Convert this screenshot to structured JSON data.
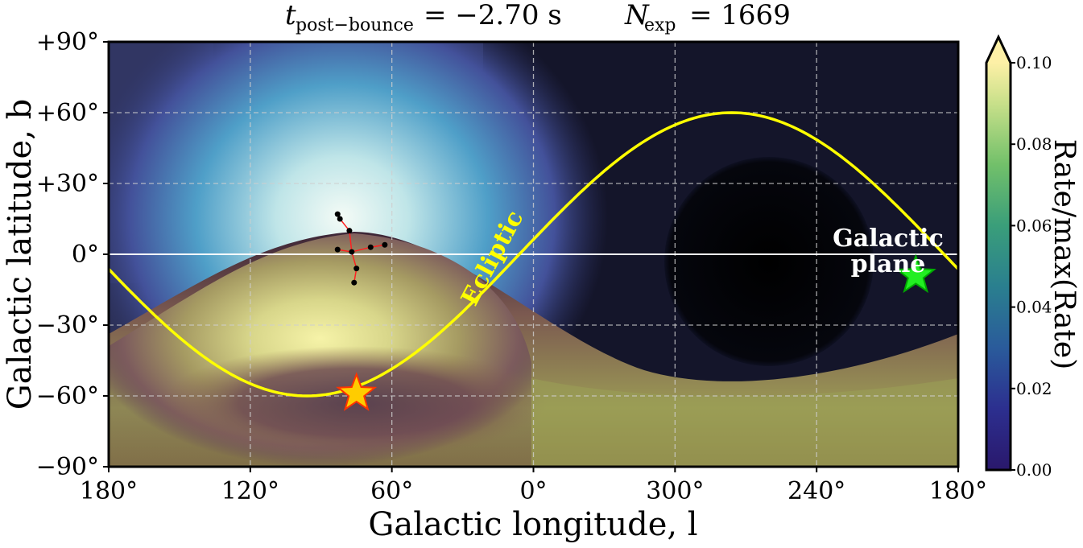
{
  "title": {
    "t_label": "t",
    "t_sub": "post−bounce",
    "t_eq": "= −2.70 s",
    "n_label": "N",
    "n_sub": "exp",
    "n_eq": "= 1669"
  },
  "chart_data": {
    "type": "heatmap",
    "projection": "equirectangular (longitude decreasing to the right)",
    "xlabel": "Galactic longitude, l",
    "ylabel": "Galactic latitude, b",
    "x_tick_labels": [
      "180°",
      "120°",
      "60°",
      "0°",
      "300°",
      "240°",
      "180°"
    ],
    "y_tick_labels": [
      "+90°",
      "+60°",
      "+30°",
      "0°",
      "−30°",
      "−60°",
      "−90°"
    ],
    "xlim_deg": [
      180,
      -180
    ],
    "ylim_deg": [
      -90,
      90
    ],
    "grid": true,
    "colorbar": {
      "label": "Rate/max(Rate)",
      "range": [
        0.0,
        0.1
      ],
      "extend": "max",
      "colormap": "haline",
      "tick_labels": [
        "0.00",
        "0.02",
        "0.04",
        "0.06",
        "0.08",
        "0.10"
      ]
    },
    "galactic_plane": {
      "label_line1": "Galactic",
      "label_line2": "plane",
      "b": 0,
      "color": "#ffffff"
    },
    "ecliptic": {
      "label": "Ecliptic",
      "color": "#ffff00",
      "amplitude_deg": 60,
      "min_at_l_deg": 96,
      "max_at_l_deg": -84
    },
    "sun_star": {
      "l": 75,
      "b": -59,
      "color": "#ffcc00",
      "edge": "#ff3300"
    },
    "anti_star": {
      "l": -162,
      "b": -9,
      "color": "#22ee22",
      "edge": "#00aa00"
    },
    "constellation_points": [
      {
        "l": 83,
        "b": 17
      },
      {
        "l": 82,
        "b": 15
      },
      {
        "l": 78,
        "b": 10
      },
      {
        "l": 63,
        "b": 4
      },
      {
        "l": 69,
        "b": 3
      },
      {
        "l": 83,
        "b": 2
      },
      {
        "l": 77,
        "b": 1
      },
      {
        "l": 75,
        "b": -6
      },
      {
        "l": 76,
        "b": -12
      }
    ],
    "constellation_lines": [
      [
        0,
        1
      ],
      [
        1,
        2
      ],
      [
        2,
        6
      ],
      [
        3,
        4
      ],
      [
        4,
        6
      ],
      [
        5,
        6
      ],
      [
        6,
        7
      ],
      [
        7,
        8
      ]
    ],
    "peak_region": {
      "l": 65,
      "b": 5
    },
    "dark_region": {
      "l": -115,
      "b": -5
    }
  }
}
